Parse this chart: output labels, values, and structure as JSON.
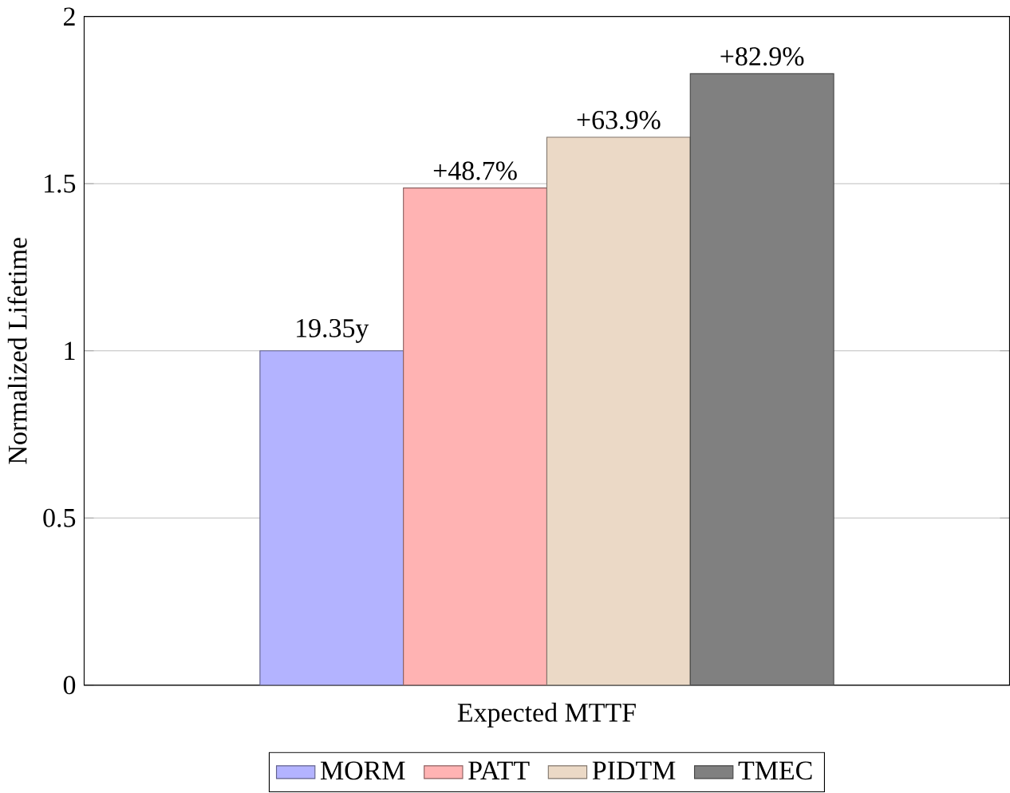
{
  "chart_data": {
    "type": "bar",
    "ylabel": "Normalized Lifetime",
    "categories": [
      "Expected MTTF"
    ],
    "series": [
      {
        "name": "MORM",
        "color": "#b3b3ff",
        "values": [
          1.0
        ]
      },
      {
        "name": "PATT",
        "color": "#ffb3b3",
        "values": [
          1.487
        ]
      },
      {
        "name": "PIDTM",
        "color": "#ebd9c6",
        "values": [
          1.639
        ]
      },
      {
        "name": "TMEC",
        "color": "#808080",
        "values": [
          1.829
        ]
      }
    ],
    "annotations": [
      "19.35y",
      "+48.7%",
      "+63.9%",
      "+82.9%"
    ],
    "ylim": [
      0,
      2
    ],
    "yticks": [
      0,
      0.5,
      1,
      1.5,
      2
    ],
    "grid": "y",
    "legend": "bottom"
  }
}
